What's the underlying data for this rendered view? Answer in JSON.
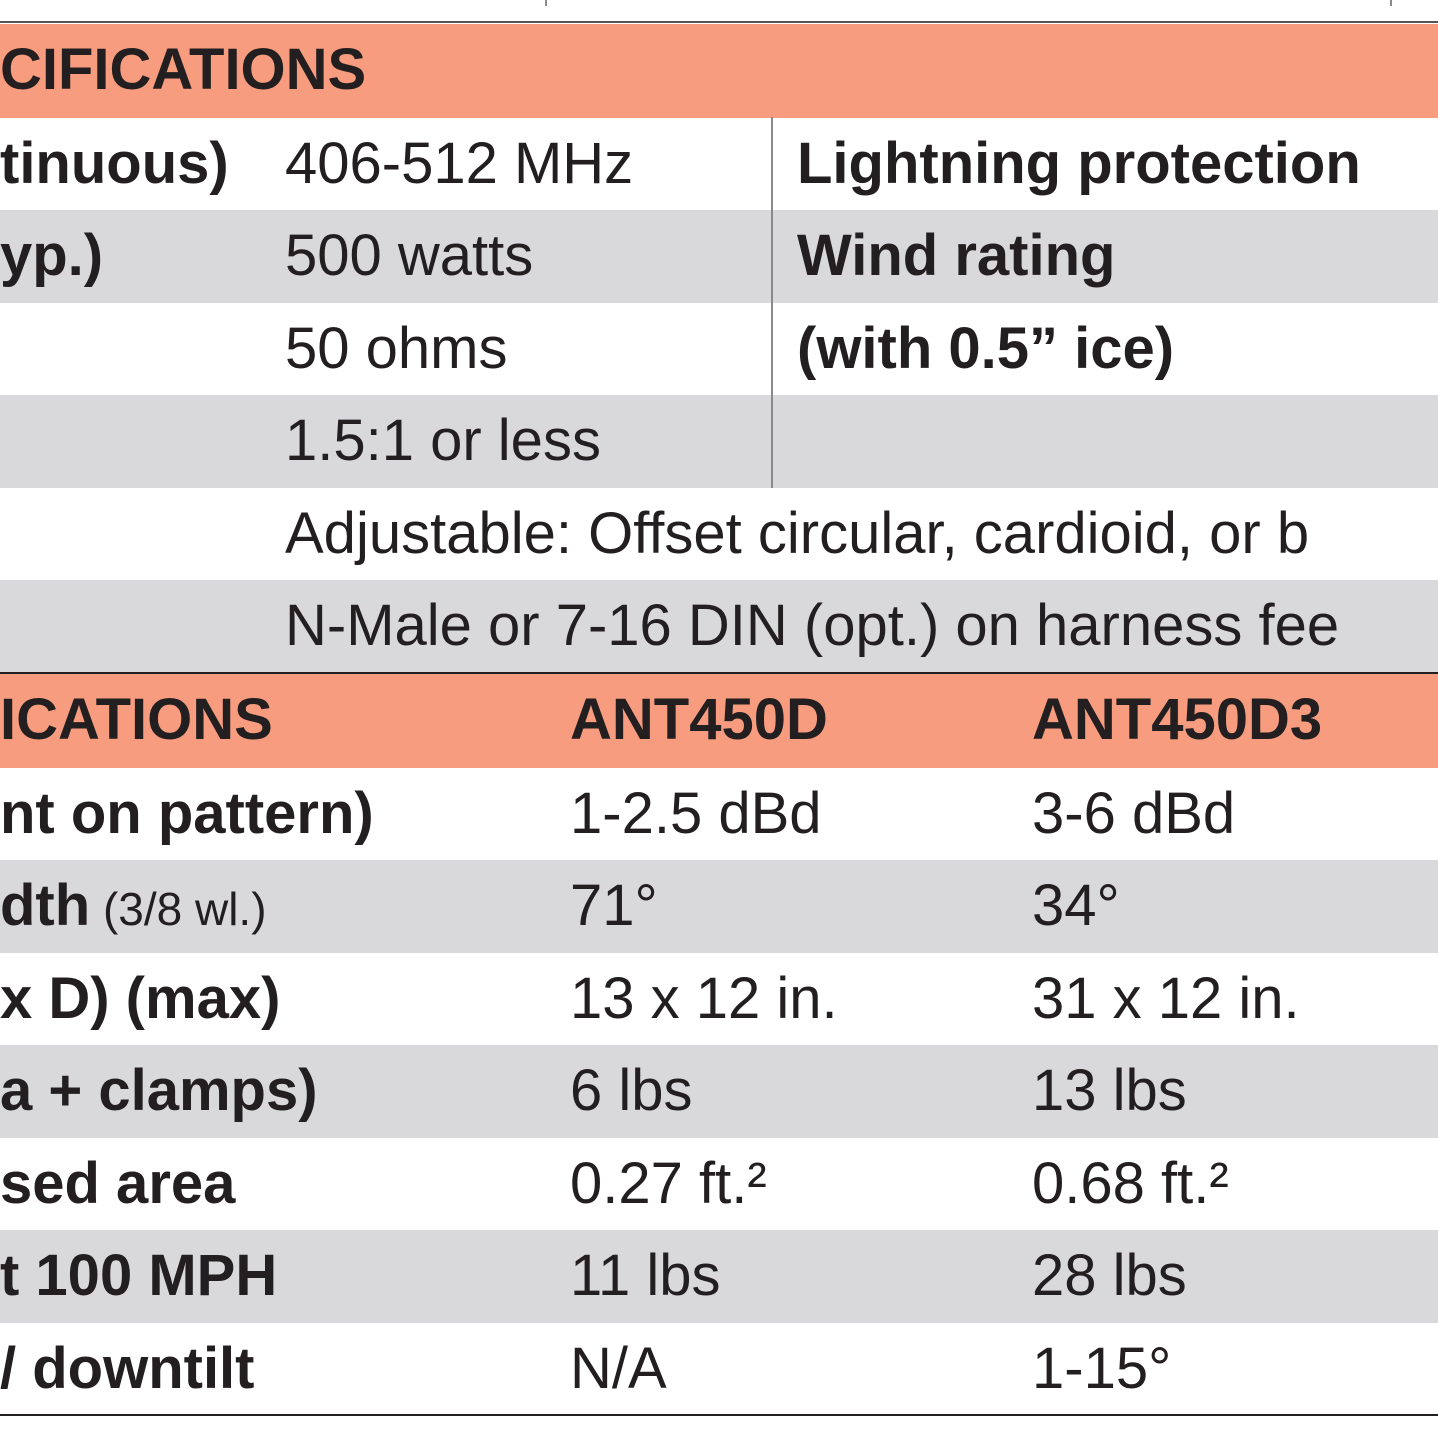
{
  "sections": [
    {
      "header": [
        "CIFICATIONS"
      ],
      "rows": [
        {
          "label": "tinuous)",
          "value": "406-512 MHz",
          "right": "Lightning protection"
        },
        {
          "label": "yp.)",
          "value": "500 watts",
          "right": "Wind rating"
        },
        {
          "value": "50 ohms",
          "right": "(with 0.5” ice)"
        },
        {
          "value": "1.5:1 or less"
        },
        {
          "value": "Adjustable: Offset circular, cardioid, or b"
        },
        {
          "value": "N-Male or 7-16 DIN (opt.) on harness fee"
        }
      ]
    },
    {
      "header": [
        "ICATIONS",
        "ANT450D",
        "ANT450D3"
      ],
      "rows": [
        {
          "label": "nt on pattern)",
          "col1": "1-2.5 dBd",
          "col2": "3-6 dBd"
        },
        {
          "label": "dth",
          "label_note": "(3/8 wl.)",
          "col1": "71°",
          "col2": "34°"
        },
        {
          "label": "x D) (max)",
          "col1": "13 x 12 in.",
          "col2": "31 x 12 in."
        },
        {
          "label": "a + clamps)",
          "col1": "6 lbs",
          "col2": "13 lbs"
        },
        {
          "label": "sed area",
          "col1": "0.27 ft.²",
          "col2": "0.68  ft.²"
        },
        {
          "label": "t 100 MPH",
          "col1": "11 lbs",
          "col2": "28 lbs"
        },
        {
          "label": "/ downtilt",
          "col1": "N/A",
          "col2": "1-15°"
        }
      ]
    }
  ]
}
